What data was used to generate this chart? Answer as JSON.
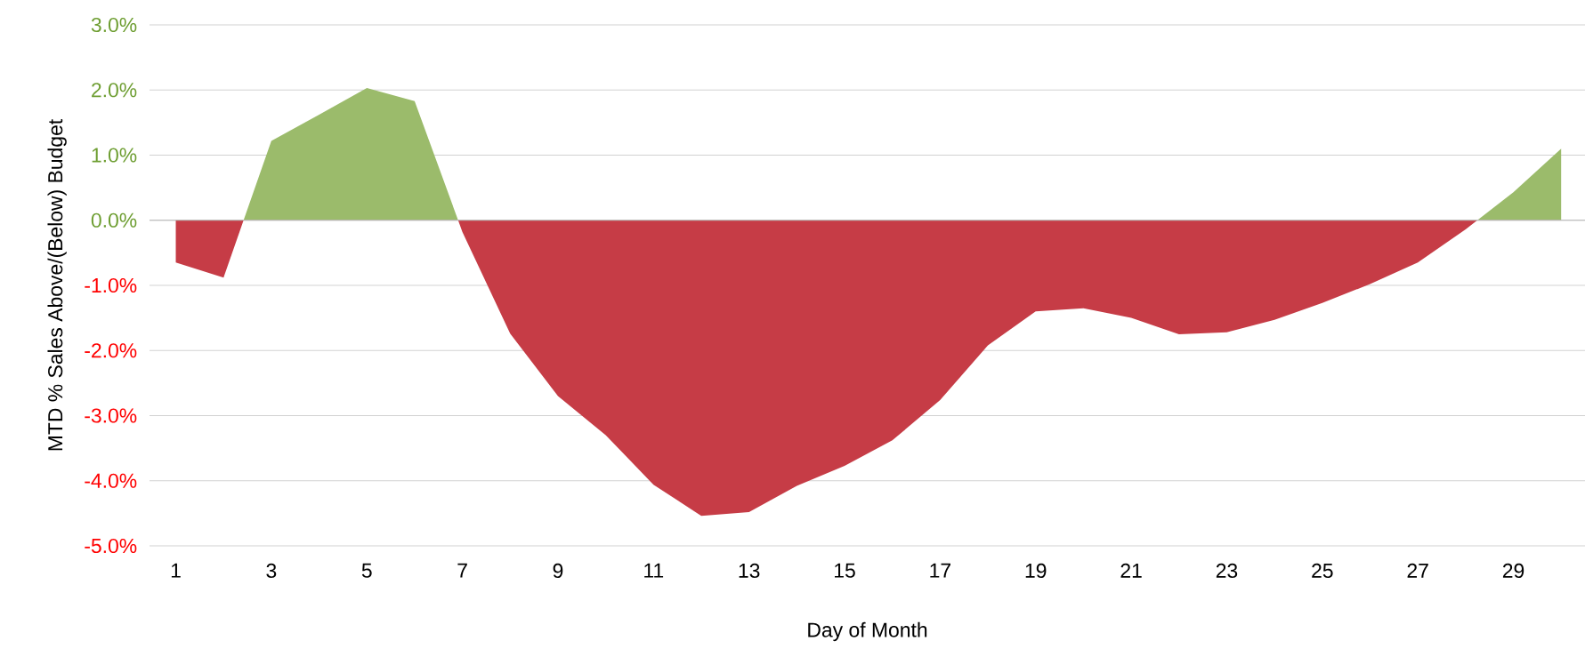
{
  "chart_data": {
    "type": "area",
    "xlabel": "Day of Month",
    "ylabel": "MTD % Sales Above/(Below) Budget",
    "x": [
      1,
      2,
      3,
      4,
      5,
      6,
      7,
      8,
      9,
      10,
      11,
      12,
      13,
      14,
      15,
      16,
      17,
      18,
      19,
      20,
      21,
      22,
      23,
      24,
      25,
      26,
      27,
      28,
      29,
      30
    ],
    "series": [
      {
        "values": [
          -0.65,
          -0.88,
          1.22,
          1.62,
          2.03,
          1.83,
          -0.18,
          -1.74,
          -2.7,
          -3.3,
          -4.06,
          -4.54,
          -4.48,
          -4.08,
          -3.77,
          -3.38,
          -2.76,
          -1.92,
          -1.4,
          -1.35,
          -1.5,
          -1.75,
          -1.72,
          -1.53,
          -1.27,
          -0.98,
          -0.65,
          -0.14,
          0.43,
          1.1
        ],
        "colors": [
          "#c63c46",
          "#c63c46",
          "#9bbb6b",
          "#9bbb6b",
          "#9bbb6b",
          "#9bbb6b",
          "#c63c46",
          "#c63c46",
          "#c63c46",
          "#c63c46",
          "#c63c46",
          "#c63c46",
          "#c63c46",
          "#c63c46",
          "#c63c46",
          "#c63c46",
          "#c63c46",
          "#c63c46",
          "#c63c46",
          "#c63c46",
          "#c63c46",
          "#c63c46",
          "#c63c46",
          "#c63c46",
          "#c63c46",
          "#c63c46",
          "#c63c46",
          "#c63c46",
          "#9bbb6b",
          "#9bbb6b"
        ]
      }
    ],
    "xlim": [
      0.45,
      30.5
    ],
    "xticks": [
      1,
      3,
      5,
      7,
      9,
      11,
      13,
      15,
      17,
      19,
      21,
      23,
      25,
      27,
      29
    ],
    "ylim": [
      -5,
      3
    ],
    "yticks": [
      {
        "value": -5,
        "label": "-5.0%"
      },
      {
        "value": -4,
        "label": "-4.0%"
      },
      {
        "value": -3,
        "label": "-3.0%"
      },
      {
        "value": -2,
        "label": "-2.0%"
      },
      {
        "value": -1,
        "label": "-1.0%"
      },
      {
        "value": 0,
        "label": "0.0%"
      },
      {
        "value": 1,
        "label": "1.0%"
      },
      {
        "value": 2,
        "label": "2.0%"
      },
      {
        "value": 3,
        "label": "3.0%"
      }
    ],
    "grid": "y"
  }
}
